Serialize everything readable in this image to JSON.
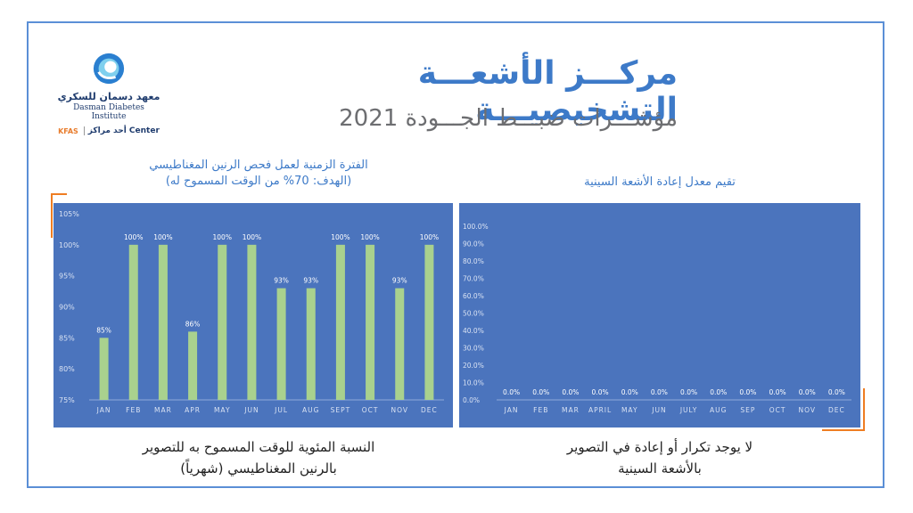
{
  "header": {
    "title": "مركـــز الأشعـــة التشخيصيـــة",
    "subtitle": "مؤشـــرات ضبـــط الجـــودة 2021"
  },
  "logo": {
    "arabic_name": "معهد دسمان للسكري",
    "english_name": "Dasman Diabetes Institute",
    "kfas_label": "KFAS",
    "kfas_center": "أحد مراكز Center"
  },
  "left_chart_title": {
    "line1": "الفترة الزمنية لعمل فحص الرنين المغناطيسي",
    "line2": "(الهدف: 70% من الوقت المسموح له)"
  },
  "right_chart_title": "تقيم معدل إعادة الأشعة السينية",
  "left_caption": {
    "line1": "النسبة المئوية للوقت المسموح به للتصوير",
    "line2": "بالرنين المغناطيسي (شهرياً)"
  },
  "right_caption": {
    "line1": "لا يوجد تكرار أو إعادة في التصوير",
    "line2": "بالأشعة السينية"
  },
  "colors": {
    "panel_bg": "#4b74bd",
    "bar_fill": "#a9d18e",
    "axis_text": "#d9e2f3",
    "accent_orange": "#ef7d22",
    "title_blue": "#3d7ac8"
  },
  "chart_data": [
    {
      "type": "bar",
      "categories": [
        "JAN",
        "FEB",
        "MAR",
        "APR",
        "MAY",
        "JUN",
        "JUL",
        "AUG",
        "SEPT",
        "OCT",
        "NOV",
        "DEC"
      ],
      "values": [
        85,
        100,
        100,
        86,
        100,
        100,
        93,
        93,
        100,
        100,
        93,
        100
      ],
      "data_labels": [
        "85%",
        "100%",
        "100%",
        "86%",
        "100%",
        "100%",
        "93%",
        "93%",
        "100%",
        "100%",
        "93%",
        "100%"
      ],
      "ylim": [
        75,
        105
      ],
      "yticks": [
        "75%",
        "80%",
        "85%",
        "90%",
        "95%",
        "100%",
        "105%"
      ],
      "grid": false
    },
    {
      "type": "bar",
      "categories": [
        "JAN",
        "FEB",
        "MAR",
        "APRIL",
        "MAY",
        "JUN",
        "JULY",
        "AUG",
        "SEP",
        "OCT",
        "NOV",
        "DEC"
      ],
      "values": [
        0,
        0,
        0,
        0,
        0,
        0,
        0,
        0,
        0,
        0,
        0,
        0
      ],
      "data_labels": [
        "0.0%",
        "0.0%",
        "0.0%",
        "0.0%",
        "0.0%",
        "0.0%",
        "0.0%",
        "0.0%",
        "0.0%",
        "0.0%",
        "0.0%",
        "0.0%"
      ],
      "ylim": [
        0,
        100
      ],
      "yticks": [
        "0.0%",
        "10.0%",
        "20.0%",
        "30.0%",
        "40.0%",
        "50.0%",
        "60.0%",
        "70.0%",
        "80.0%",
        "90.0%",
        "100.0%"
      ],
      "grid": false
    }
  ]
}
